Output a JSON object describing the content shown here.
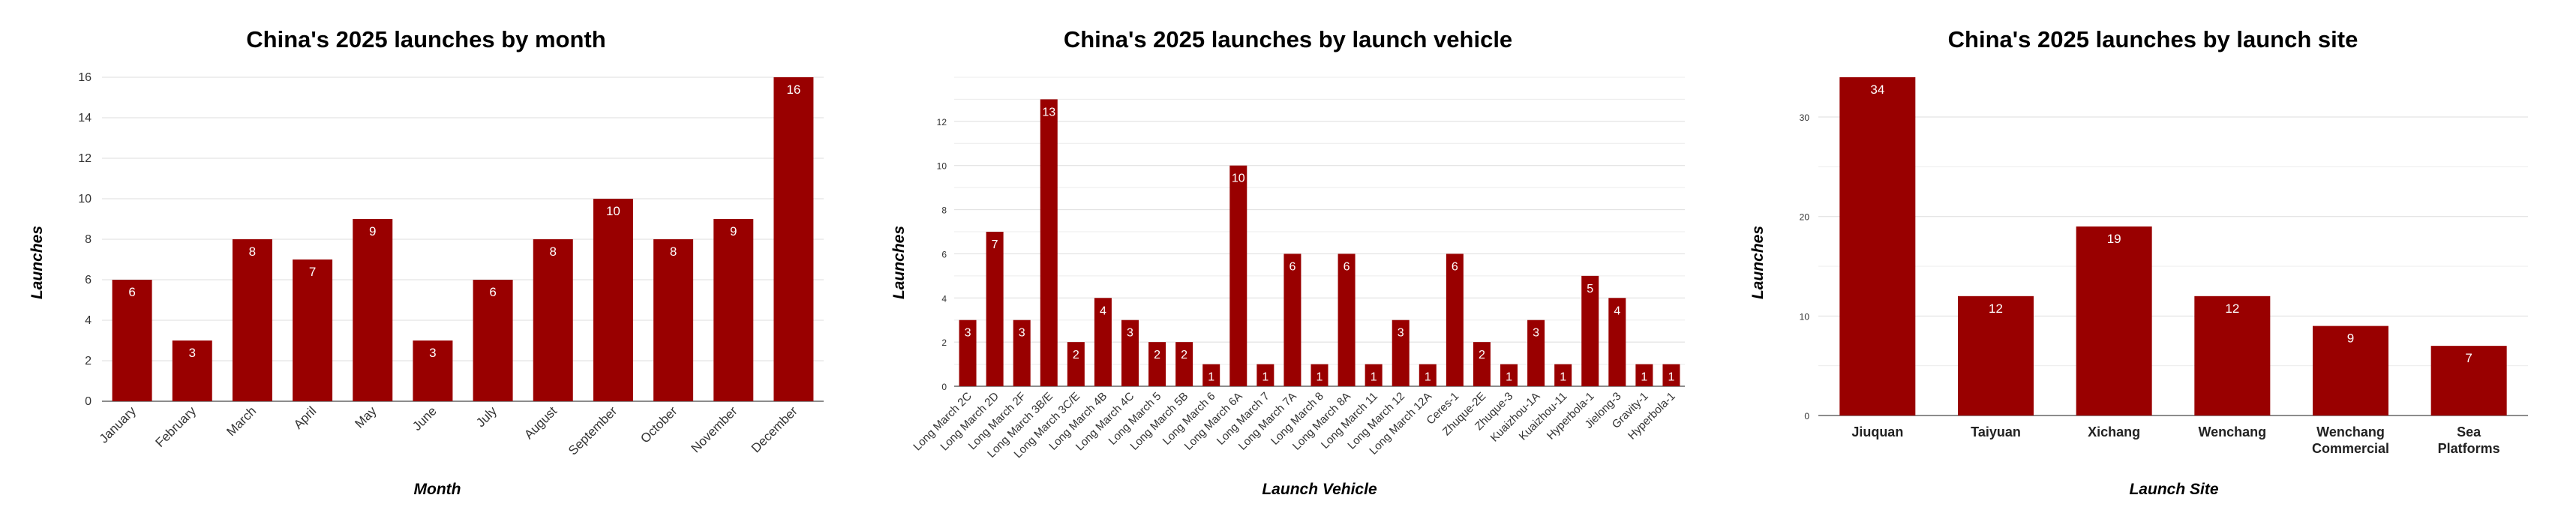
{
  "chart_data": [
    {
      "type": "bar",
      "title": "China's 2025 launches by month",
      "xlabel": "Month",
      "ylabel": "Launches",
      "ylim": [
        0,
        16
      ],
      "yticks": [
        0,
        2,
        4,
        6,
        8,
        10,
        12,
        14,
        16
      ],
      "categories": [
        "January",
        "February",
        "March",
        "April",
        "May",
        "June",
        "July",
        "August",
        "September",
        "October",
        "November",
        "December"
      ],
      "values": [
        6,
        3,
        8,
        7,
        9,
        3,
        6,
        8,
        10,
        8,
        9,
        16
      ],
      "bar_color": "#990000",
      "grid": true,
      "data_labels": true
    },
    {
      "type": "bar",
      "title": "China's 2025 launches by launch vehicle",
      "xlabel": "Launch Vehicle",
      "ylabel": "Launches",
      "ylim": [
        0,
        14
      ],
      "yticks": [
        0,
        2,
        4,
        6,
        8,
        10,
        12
      ],
      "categories": [
        "Long March 2C",
        "Long March 2D",
        "Long March 2F",
        "Long March 3B/E",
        "Long March 3C/E",
        "Long March 4B",
        "Long March 4C",
        "Long March 5",
        "Long March 5B",
        "Long March 6",
        "Long March 6A",
        "Long March 7",
        "Long March 7A",
        "Long March 8",
        "Long March 8A",
        "Long March 11",
        "Long March 12",
        "Long March 12A",
        "Ceres-1",
        "Zhuque-2E",
        "Zhuque-3",
        "Kuaizhou-1A",
        "Kuaizhou-11",
        "Hyperbola-1",
        "Jielong-3",
        "Gravity-1",
        "Hyperbola-1"
      ],
      "values": [
        3,
        7,
        3,
        13,
        2,
        4,
        3,
        2,
        2,
        1,
        10,
        1,
        6,
        1,
        6,
        1,
        3,
        1,
        6,
        2,
        1,
        3,
        1,
        5,
        4,
        1,
        1
      ],
      "bar_color": "#990000",
      "grid": true,
      "data_labels": true
    },
    {
      "type": "bar",
      "title": "China's 2025 launches by launch site",
      "xlabel": "Launch Site",
      "ylabel": "Launches",
      "ylim": [
        0,
        34
      ],
      "yticks": [
        0,
        10,
        20,
        30
      ],
      "categories": [
        "Jiuquan",
        "Taiyuan",
        "Xichang",
        "Wenchang",
        "Wenchang Commercial",
        "Sea Platforms"
      ],
      "values": [
        34,
        12,
        19,
        12,
        9,
        7
      ],
      "bar_color": "#990000",
      "grid": true,
      "data_labels": true
    }
  ]
}
